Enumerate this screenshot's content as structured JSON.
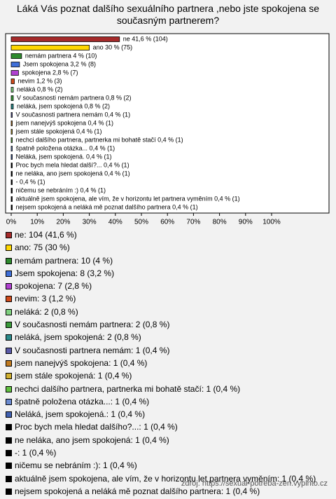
{
  "chart_data": {
    "type": "bar",
    "title": "Láká Vás poznat dalšího sexuálního partnera ,nebo jste spokojena se současným partnerem?",
    "categories": [
      "ne",
      "ano",
      "nemám partnera",
      "Jsem spokojena",
      "spokojena",
      "nevim",
      "neláká",
      "V současnosti nemám partnera",
      "neláká, jsem spokojená",
      "V současnosti partnera nemám",
      "jsem nanejvýš spokojena",
      "jsem stále spokojená",
      "nechci dalšího partnera, partnerka mi bohatě stačí",
      "špatně položena otázka...",
      "Neláká, jsem spokojená.",
      "Proc bych mela hledat dalšího?...",
      "ne neláka, ano jsem spokojená",
      "-",
      "ničemu se nebráním :)",
      "aktuálně jsem spokojena, ale vím, že v horizontu let partnera vyměním",
      "nejsem spokojená a neláká mě poznat dalšího partnera"
    ],
    "values": [
      41.6,
      30,
      4,
      3.2,
      2.8,
      1.2,
      0.8,
      0.8,
      0.8,
      0.4,
      0.4,
      0.4,
      0.4,
      0.4,
      0.4,
      0.4,
      0.4,
      0.4,
      0.4,
      0.4,
      0.4
    ],
    "value_labels": [
      "ne 41,6 % (104)",
      "ano 30 % (75)",
      "nemám partnera 4 % (10)",
      "Jsem spokojena 3,2 % (8)",
      "spokojena 2,8 % (7)",
      "nevim 1,2 % (3)",
      "neláká 0,8 % (2)",
      "V současnosti nemám partnera 0,8 % (2)",
      "neláká, jsem spokojená 0,8 % (2)",
      "V současnosti partnera nemám 0,4 % (1)",
      "jsem nanejvýš spokojena 0,4 % (1)",
      "jsem stále spokojená 0,4 % (1)",
      "nechci dalšího partnera, partnerka mi bohatě stačí 0,4 % (1)",
      "špatně položena otázka... 0,4 % (1)",
      "Neláká, jsem spokojená. 0,4 % (1)",
      "Proc bych mela hledat další?... 0,4 % (1)",
      "ne neláka, ano jsem spokojená 0,4 % (1)",
      "- 0,4 % (1)",
      "ničemu se nebráním :) 0,4 % (1)",
      "aktuálně jsem spokojena, ale vím, že v horizontu let partnera vyměním 0,4 % (1)",
      "nejsem spokojená a neláká mě poznat dalšího partnera 0,4 % (1)"
    ],
    "colors": [
      "#a52a2a",
      "#ffd700",
      "#2e8b2e",
      "#3f6fd8",
      "#b040d0",
      "#d04a1a",
      "#7fd07f",
      "#3a9a3a",
      "#2a8a8a",
      "#5a5aa8",
      "#c07a20",
      "#d0b030",
      "#60c040",
      "#6a8ad0",
      "#4060b0",
      "#000000",
      "#000000",
      "#000000",
      "#000000",
      "#000000",
      "#000000"
    ],
    "legend": [
      "ne: 104 (41,6 %)",
      "ano: 75 (30 %)",
      "nemám partnera: 10 (4 %)",
      "Jsem spokojena: 8 (3,2 %)",
      "spokojena: 7 (2,8 %)",
      "nevim: 3 (1,2 %)",
      "neláká: 2 (0,8 %)",
      "V současnosti nemám partnera: 2 (0,8 %)",
      "neláká, jsem spokojená: 2 (0,8 %)",
      "V současnosti partnera nemám: 1 (0,4 %)",
      "jsem nanejvýš spokojena: 1 (0,4 %)",
      "jsem stále spokojená: 1 (0,4 %)",
      "nechci dalšího partnera, partnerka mi bohatě stačí: 1 (0,4 %)",
      "špatně položena otázka...: 1 (0,4 %)",
      "Neláká, jsem spokojená.: 1 (0,4 %)",
      "Proc bych mela hledat dalšího?...: 1 (0,4 %)",
      "ne neláka, ano jsem spokojená: 1 (0,4 %)",
      "-: 1 (0,4 %)",
      "ničemu se nebráním :): 1 (0,4 %)",
      "aktuálně jsem spokojena, ale vím, že v horizontu let partnera vyměním: 1 (0,4 %)",
      "nejsem spokojená a neláká mě poznat dalšího partnera: 1 (0,4 %)"
    ],
    "xlim": [
      0,
      100
    ],
    "xticks": [
      {
        "value": 0,
        "label": "0%"
      },
      {
        "value": 10,
        "label": "10%"
      },
      {
        "value": 20,
        "label": "20%"
      },
      {
        "value": 30,
        "label": "30%"
      },
      {
        "value": 40,
        "label": "40%"
      },
      {
        "value": 50,
        "label": "50%"
      },
      {
        "value": 60,
        "label": "60%"
      },
      {
        "value": 70,
        "label": "70%"
      },
      {
        "value": 80,
        "label": "80%"
      },
      {
        "value": 90,
        "label": "90%"
      },
      {
        "value": 100,
        "label": "100%"
      }
    ],
    "source": "zdroj: https://sexual-potreba-zen.vyplnto.cz"
  }
}
